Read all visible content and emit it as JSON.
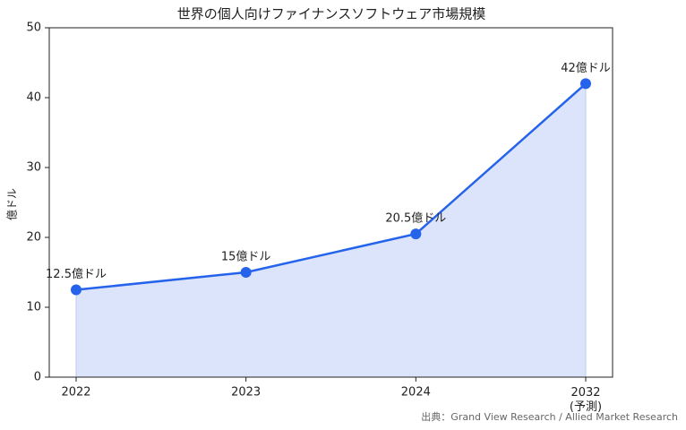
{
  "chart_data": {
    "type": "line",
    "title": "世界の個人向けファイナンスソフトウェア市場規模",
    "y_label": "億ドル",
    "categories": [
      "2022",
      "2023",
      "2024",
      "2032\n(予測)"
    ],
    "values": [
      12.5,
      15,
      20.5,
      42
    ],
    "value_labels": [
      "12.5億ドル",
      "15億ドル",
      "20.5億ドル",
      "42億ドル"
    ],
    "color": "#2563eb",
    "area_color": "#dbe4fb",
    "ylim": [
      0,
      50
    ],
    "yticks": [
      0,
      10,
      20,
      30,
      40,
      50
    ],
    "source": "出典：Grand View Research / Allied Market Research"
  }
}
